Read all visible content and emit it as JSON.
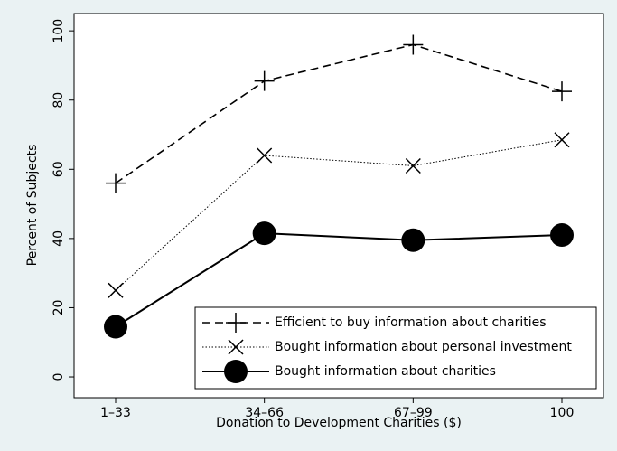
{
  "chart_data": {
    "type": "line",
    "xlabel": "Donation to Development Charities ($)",
    "ylabel": "Percent of Subjects",
    "categories": [
      "1–33",
      "34–66",
      "67–99",
      "100"
    ],
    "series": [
      {
        "name": "Efficient to buy information about charities",
        "color": "#000000",
        "dash": "dashed",
        "marker": "plus",
        "values": [
          56,
          85.5,
          96,
          82.5
        ]
      },
      {
        "name": "Bought information about personal investment",
        "color": "#000000",
        "dash": "dotted",
        "marker": "x",
        "values": [
          25,
          64,
          61,
          68.5
        ]
      },
      {
        "name": "Bought information about charities",
        "color": "#000000",
        "dash": "solid",
        "marker": "circle",
        "values": [
          14.5,
          41.5,
          39.5,
          41
        ]
      }
    ],
    "ylim": [
      -6,
      105
    ],
    "yticks": [
      0,
      20,
      40,
      60,
      80,
      100
    ],
    "grid": false,
    "legend": "lower right"
  }
}
